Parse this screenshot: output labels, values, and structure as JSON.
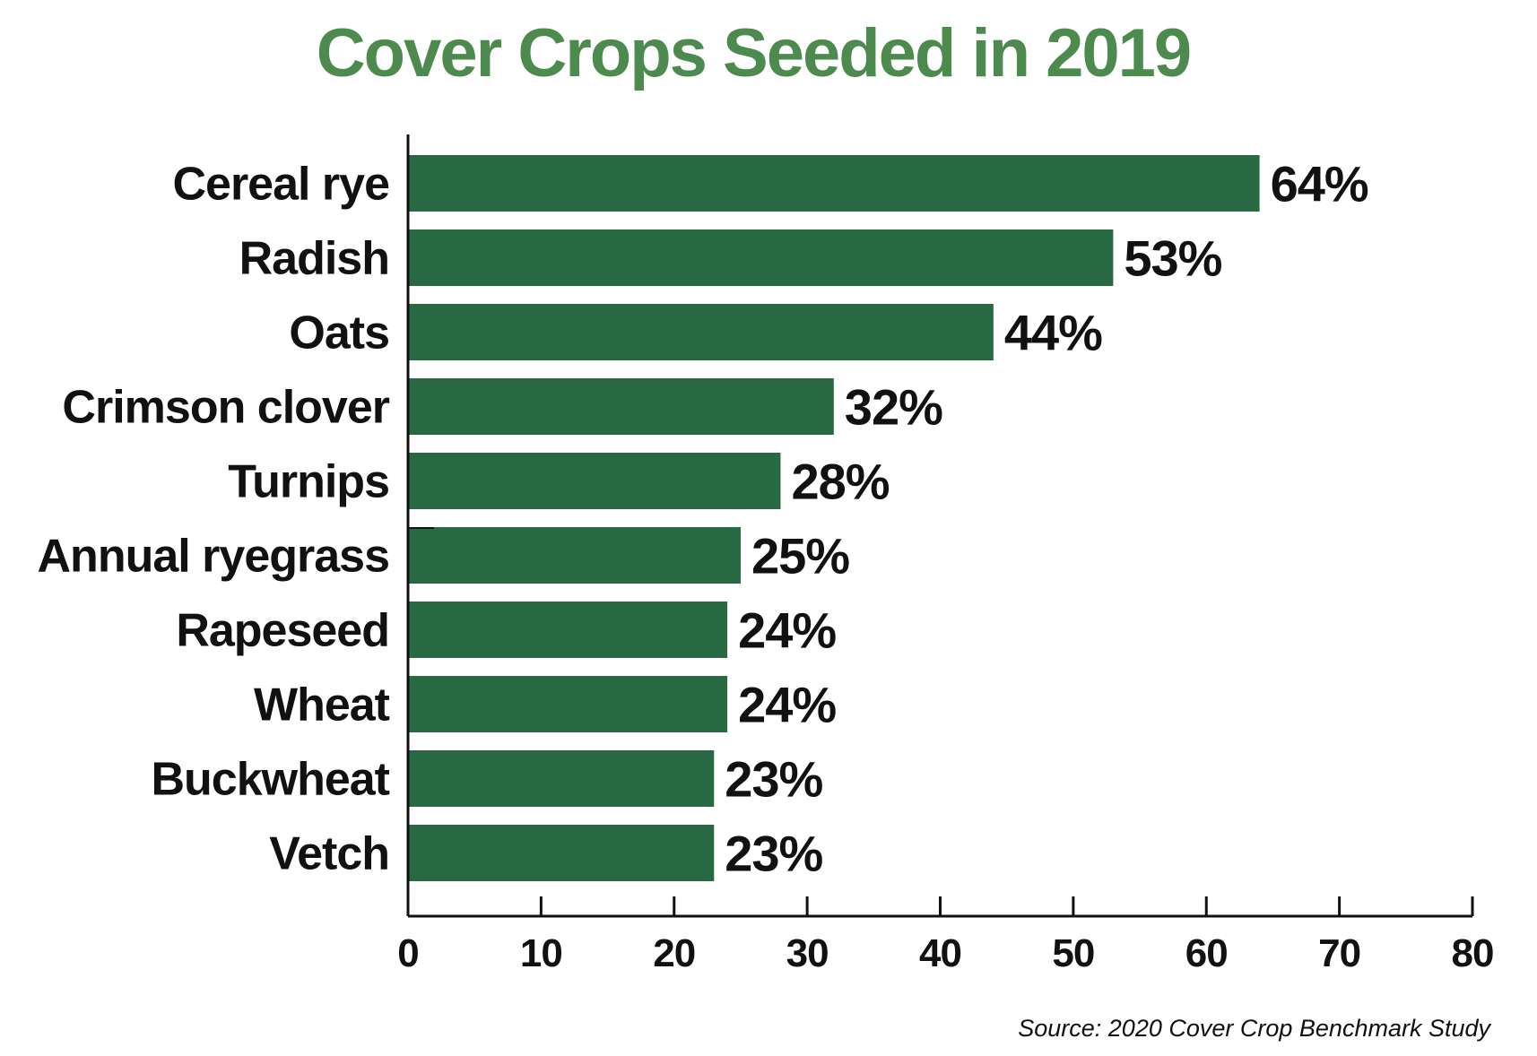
{
  "chart_data": {
    "type": "bar",
    "orientation": "horizontal",
    "title": "Cover Crops Seeded in 2019",
    "categories": [
      "Cereal rye",
      "Radish",
      "Oats",
      "Crimson clover",
      "Turnips",
      "Annual ryegrass",
      "Rapeseed",
      "Wheat",
      "Buckwheat",
      "Vetch"
    ],
    "values": [
      64,
      53,
      44,
      32,
      28,
      25,
      24,
      24,
      23,
      23
    ],
    "value_labels": [
      "64%",
      "53%",
      "44%",
      "32%",
      "28%",
      "25%",
      "24%",
      "24%",
      "23%",
      "23%"
    ],
    "xlim": [
      0,
      80
    ],
    "x_ticks": [
      0,
      10,
      20,
      30,
      40,
      50,
      60,
      70,
      80
    ],
    "x_tick_labels": [
      "0",
      "10",
      "20",
      "30",
      "40",
      "50",
      "60",
      "70",
      "80"
    ],
    "xlabel": "",
    "ylabel": "",
    "grid": false,
    "legend": "none",
    "source": "Source: 2020 Cover Crop Benchmark Study",
    "colors": {
      "bar": "#286842",
      "title": "#4d8a4e",
      "text": "#111111"
    }
  }
}
